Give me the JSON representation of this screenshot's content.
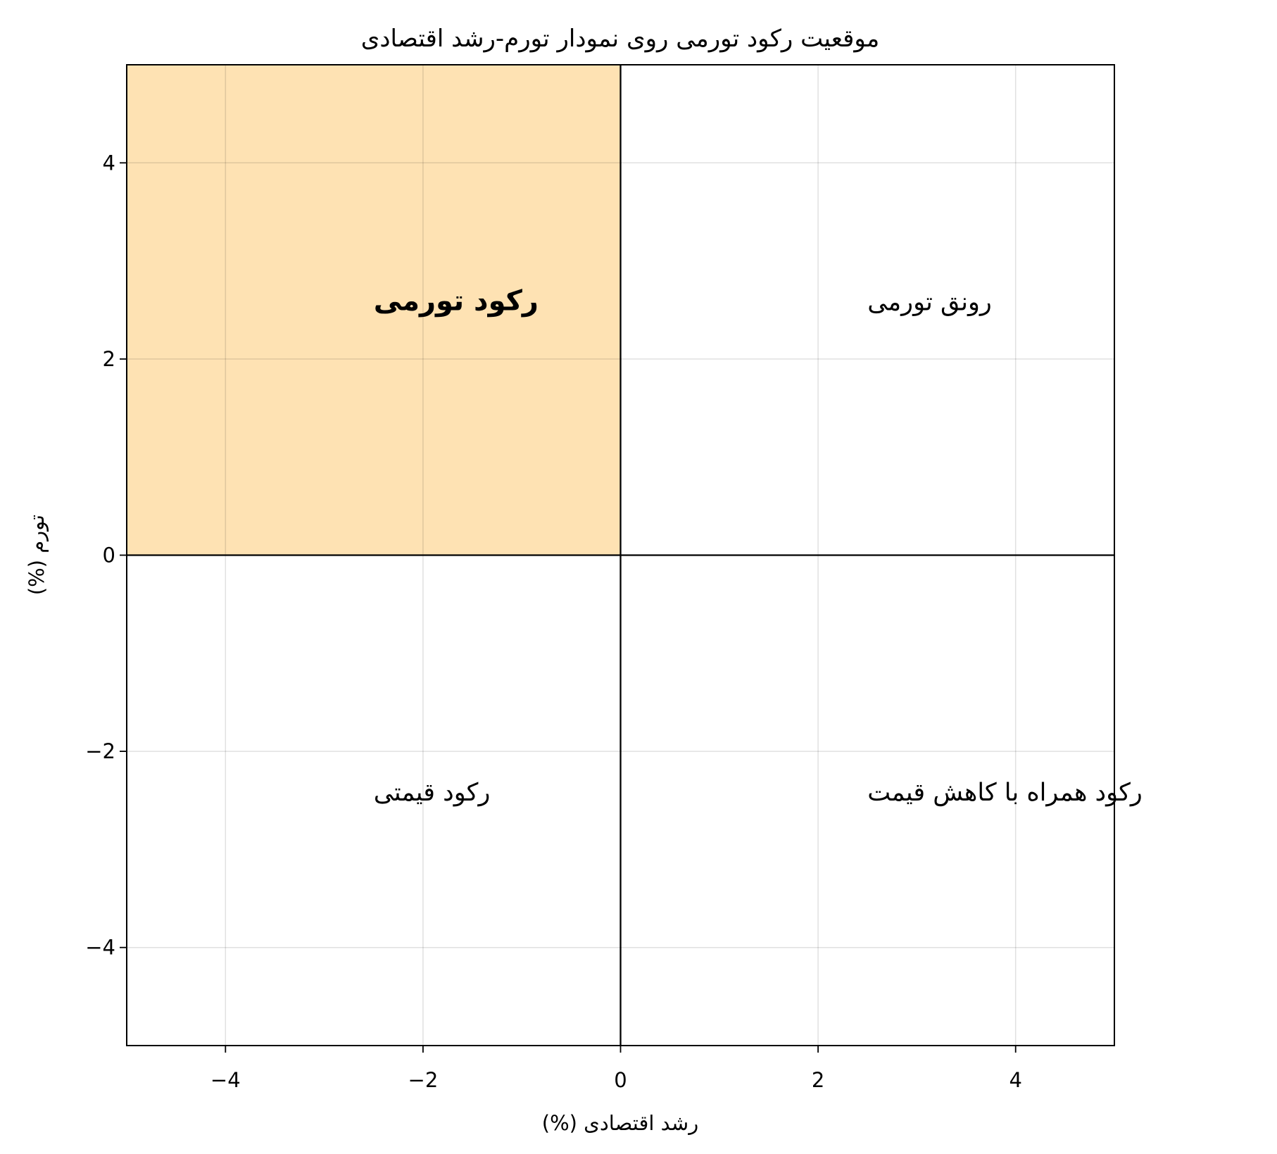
{
  "chart_data": {
    "type": "quadrant",
    "title": "موقعیت رکود تورمی روی نمودار تورم-رشد اقتصادی",
    "xlabel": "رشد اقتصادی (%)",
    "ylabel": "تورم (%)",
    "xlim": [
      -5,
      5
    ],
    "ylim": [
      -5,
      5
    ],
    "xticks": [
      {
        "value": -4,
        "label": "−4"
      },
      {
        "value": -2,
        "label": "−2"
      },
      0,
      2,
      4
    ],
    "yticks": [
      {
        "value": -4,
        "label": "−4"
      },
      {
        "value": -2,
        "label": "−2"
      },
      0,
      2,
      4
    ],
    "grid": true,
    "hlines": [
      0
    ],
    "vlines": [
      0
    ],
    "regions": [
      {
        "x": [
          -5,
          0
        ],
        "y": [
          0,
          5
        ],
        "color": "#fee2b3"
      }
    ],
    "annotations": [
      {
        "text": "رکود تورمی",
        "x": -2.5,
        "y": 2.5,
        "color": "#ff0000",
        "bold": true
      },
      {
        "text": "رونق تورمی",
        "x": 2.5,
        "y": 2.5,
        "color": "#008000",
        "bold": false
      },
      {
        "text": "رکود قیمتی",
        "x": -2.5,
        "y": -2.5,
        "color": "#800080",
        "bold": false
      },
      {
        "text": "رکود همراه با کاهش قیمت",
        "x": 2.5,
        "y": -2.5,
        "color": "#0000ff",
        "bold": false
      }
    ]
  }
}
